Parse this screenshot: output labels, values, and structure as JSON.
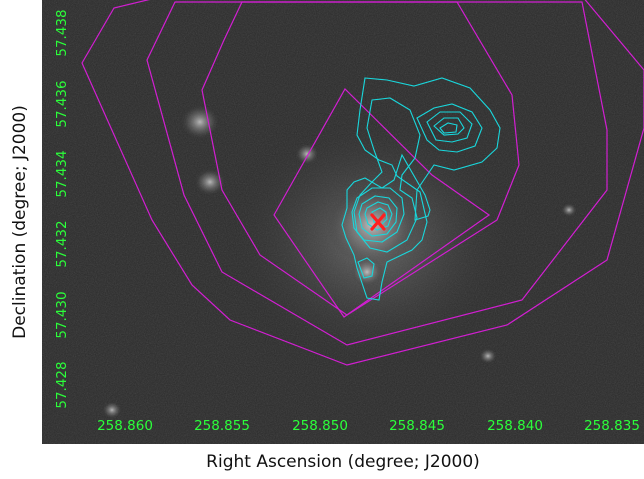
{
  "axes": {
    "xlabel": "Right Ascension (degree; J2000)",
    "ylabel": "Declination (degree; J2000)",
    "x_ticks": [
      "258.860",
      "258.855",
      "258.850",
      "258.845",
      "258.840",
      "258.835"
    ],
    "y_ticks": [
      "57.438",
      "57.436",
      "57.434",
      "57.432",
      "57.430",
      "57.428"
    ],
    "tick_color": "#2bff3a"
  },
  "overlays": {
    "radio_contours_color": "#19d7dc",
    "xray_contours_color": "#d21ed2",
    "marker_color": "#ff2020",
    "marker_icon": "x-marker-icon"
  }
}
